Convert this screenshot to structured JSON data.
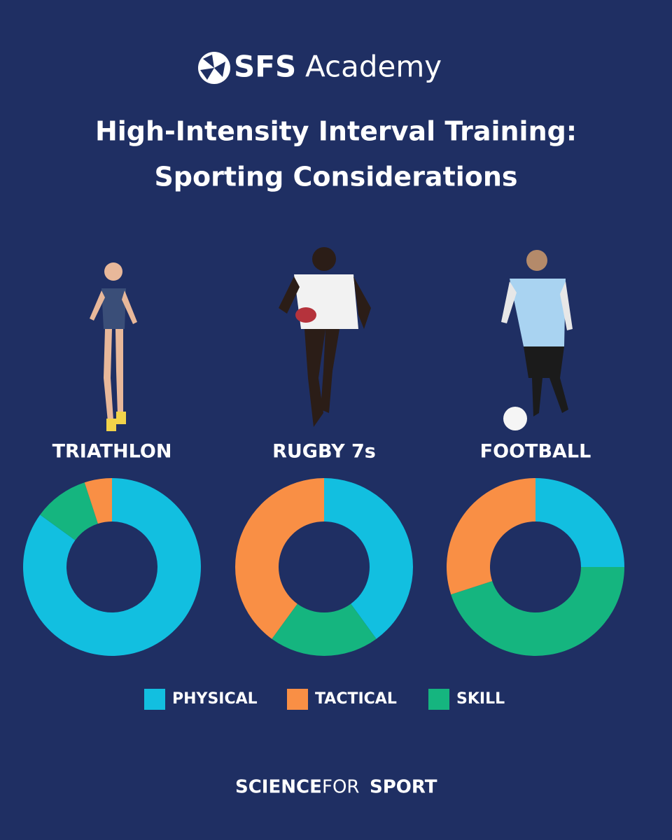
{
  "header": {
    "logo_bold": "SFS",
    "logo_light": "Academy",
    "title_line1": "High-Intensity Interval Training:",
    "title_line2": "Sporting Considerations"
  },
  "chart_data": [
    {
      "type": "pie",
      "title": "TRIATHLON",
      "categories": [
        "PHYSICAL",
        "TACTICAL",
        "SKILL"
      ],
      "values": [
        85,
        5,
        10
      ],
      "colors": [
        "#12bfe0",
        "#f98f45",
        "#15b57f"
      ],
      "donut": true
    },
    {
      "type": "pie",
      "title": "RUGBY 7s",
      "categories": [
        "PHYSICAL",
        "TACTICAL",
        "SKILL"
      ],
      "values": [
        40,
        40,
        20
      ],
      "colors": [
        "#12bfe0",
        "#f98f45",
        "#15b57f"
      ],
      "donut": true
    },
    {
      "type": "pie",
      "title": "FOOTBALL",
      "categories": [
        "PHYSICAL",
        "TACTICAL",
        "SKILL"
      ],
      "values": [
        25,
        30,
        45
      ],
      "colors": [
        "#12bfe0",
        "#f98f45",
        "#15b57f"
      ],
      "donut": true
    }
  ],
  "footer": {
    "bold_1": "SCIENCE",
    "light": "FOR",
    "bold_2": "SPORT"
  }
}
